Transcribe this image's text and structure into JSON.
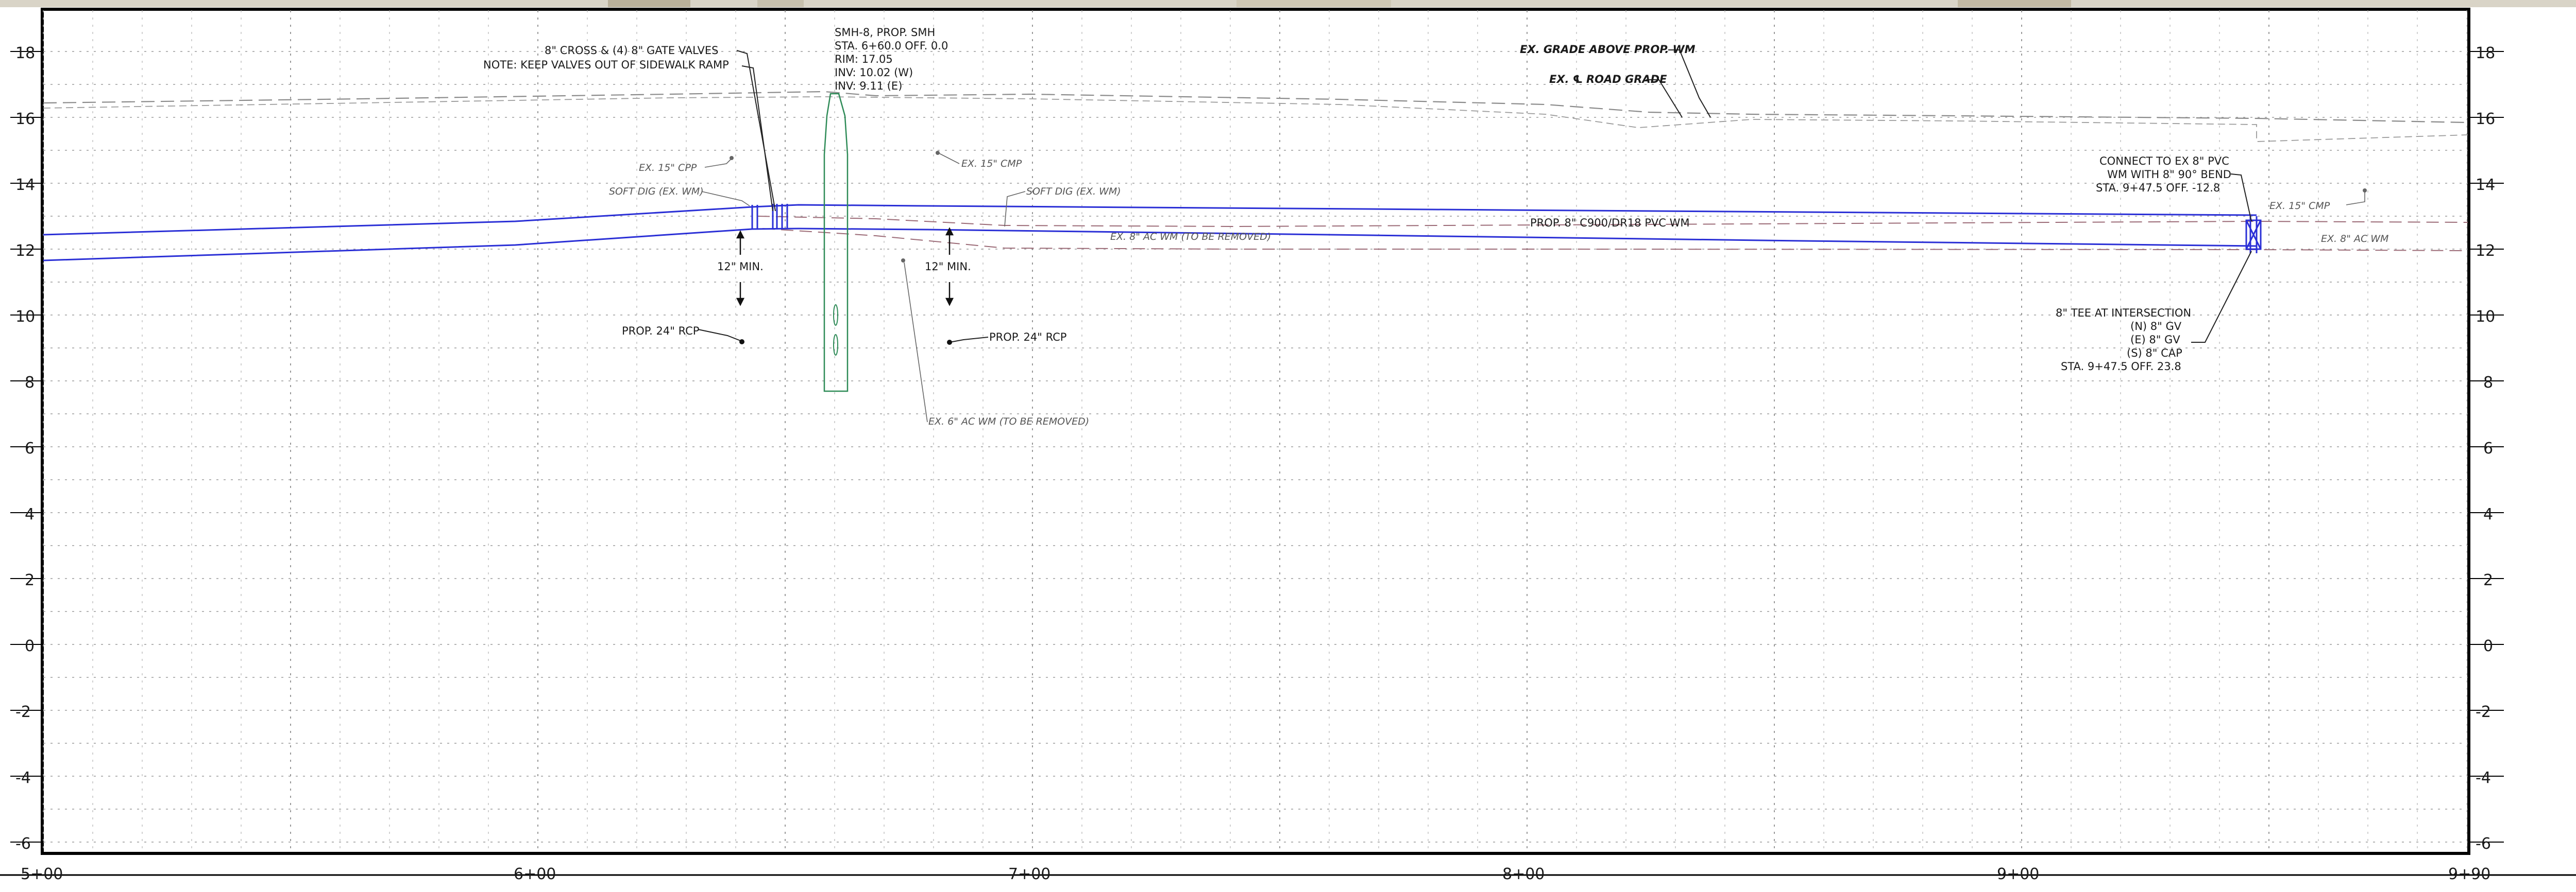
{
  "profile": {
    "elev_labels": [
      "18",
      "16",
      "14",
      "12",
      "10",
      "8",
      "6",
      "4",
      "2",
      "0",
      "-2",
      "-4",
      "-6"
    ],
    "station_labels": [
      "5+00",
      "6+00",
      "7+00",
      "8+00",
      "9+00",
      "9+90"
    ],
    "colors": {
      "prop_main": "#2a2fd6",
      "existing_main": "#c07a86",
      "grade": "#777777",
      "manhole": "#2e8b57",
      "grid": "#9a9a9a",
      "frame": "#000000"
    }
  },
  "annotations": {
    "cross_valves": "8\" CROSS & (4) 8\" GATE VALVES",
    "cross_note": "NOTE: KEEP VALVES OUT OF SIDEWALK RAMP",
    "smh": {
      "line1": "SMH-8, PROP. SMH",
      "line2": "STA. 6+60.0 OFF. 0.0",
      "line3": "RIM: 17.05",
      "line4": "INV: 10.02 (W)",
      "line5": "INV: 9.11 (E)"
    },
    "ex_grade_above": "EX. GRADE ABOVE PROP. WM",
    "ex_road_grade": "EX. ℄ ROAD GRADE",
    "ex15_cpp": "EX. 15\" CPP",
    "soft_dig_1": "SOFT DIG (EX. WM)",
    "ex15_cmp_1": "EX. 15\" CMP",
    "soft_dig_2": "SOFT DIG (EX. WM)",
    "ex8_ac_removed": "EX. 8\" AC WM (TO BE REMOVED)",
    "prop_main": "PROP. 8\" C900/DR18 PVC WM",
    "min_12_a": "12\" MIN.",
    "min_12_b": "12\" MIN.",
    "prop24_a": "PROP. 24\" RCP",
    "prop24_b": "PROP. 24\" RCP",
    "ex6_ac_removed": "EX. 6\" AC WM (TO BE REMOVED)",
    "connect": {
      "line1": "CONNECT TO EX 8\" PVC",
      "line2": "WM WITH 8\" 90° BEND",
      "line3": "STA. 9+47.5 OFF. -12.8"
    },
    "ex15_cmp_2": "EX. 15\" CMP",
    "ex8_ac": "EX. 8\" AC WM",
    "tee": {
      "line1": "8\" TEE AT INTERSECTION",
      "line2": "(N) 8\" GV",
      "line3": "(E) 8\" GV",
      "line4": "(S) 8\" CAP",
      "line5": "STA. 9+47.5 OFF. 23.8"
    }
  }
}
